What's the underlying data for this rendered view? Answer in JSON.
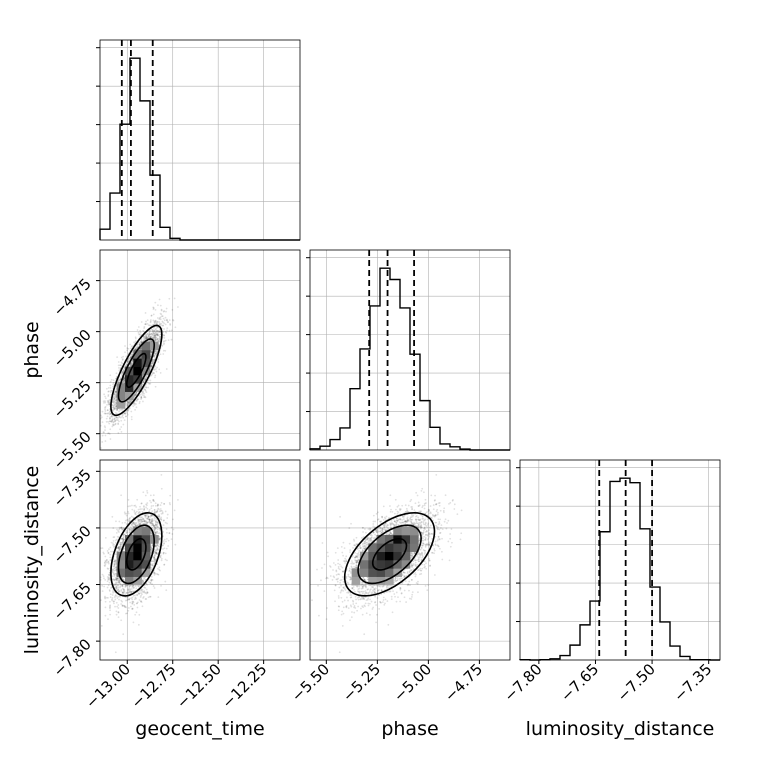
{
  "chart_data": {
    "type": "corner",
    "parameters": [
      {
        "key": "geocent_time",
        "label": "geocent_time",
        "range": [
          -13.15,
          -12.05
        ],
        "ticks": [
          "−13.00",
          "−12.75",
          "−12.50",
          "−12.25"
        ],
        "tick_values": [
          -13.0,
          -12.75,
          -12.5,
          -12.25
        ],
        "quantiles": [
          -13.03,
          -12.98,
          -12.86
        ],
        "mean": -12.95,
        "sd": 0.07,
        "hist_peak_tilt": 0.0
      },
      {
        "key": "phase",
        "label": "phase",
        "range": [
          -5.58,
          -4.6
        ],
        "ticks": [
          "−5.50",
          "−5.25",
          "−5.00",
          "−4.75"
        ],
        "tick_values": [
          -5.5,
          -5.25,
          -5.0,
          -4.75
        ],
        "quantiles": [
          -5.29,
          -5.2,
          -5.07
        ],
        "mean": -5.19,
        "sd": 0.11,
        "hist_peak_tilt": 0.0
      },
      {
        "key": "luminosity_distance",
        "label": "luminosity_distance",
        "range": [
          -7.85,
          -7.32
        ],
        "ticks": [
          "−7.80",
          "−7.65",
          "−7.50",
          "−7.35"
        ],
        "tick_values": [
          -7.8,
          -7.65,
          -7.5,
          -7.35
        ],
        "quantiles": [
          -7.64,
          -7.57,
          -7.5
        ],
        "mean": -7.57,
        "sd": 0.055,
        "hist_peak_tilt": 0.0
      }
    ],
    "correlations": {
      "phase|geocent_time": 0.8,
      "luminosity_distance|geocent_time": 0.45,
      "luminosity_distance|phase": 0.55
    },
    "grid": true,
    "quantile_levels": [
      0.16,
      0.5,
      0.84
    ],
    "colors": {
      "line": "#000000",
      "grid": "#b0b0b0",
      "points": "#000000"
    }
  }
}
